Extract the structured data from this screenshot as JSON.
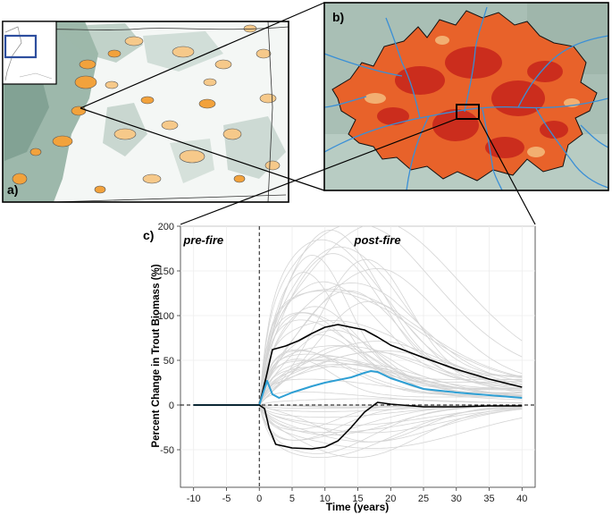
{
  "panels": {
    "a": {
      "label": "a)"
    },
    "b": {
      "label": "b)"
    },
    "c": {
      "label": "c)"
    }
  },
  "colors": {
    "forest": "#8fae9f",
    "fire_orange": "#f2a23c",
    "fire_light": "#f6c98a",
    "burn_red": "#c8281c",
    "burn_orange": "#e8622a",
    "stream_blue": "#3a8fd6",
    "inset_box": "#2d4e9e",
    "median_line": "#2e9fd4",
    "bound_line": "#000000",
    "sim_line": "#d4d4d4"
  },
  "chart_data": {
    "type": "line",
    "xlabel": "Time (years)",
    "ylabel": "Percent Change in Trout Biomass (%)",
    "xlim": [
      -12,
      42
    ],
    "ylim": [
      -92,
      200
    ],
    "xticks": [
      -10,
      -5,
      0,
      5,
      10,
      15,
      20,
      25,
      30,
      35,
      40
    ],
    "yticks": [
      -50,
      0,
      50,
      100,
      150,
      200
    ],
    "grid": true,
    "annotations": [
      {
        "text": "pre-fire",
        "x": -8.5,
        "y": 180
      },
      {
        "text": "post-fire",
        "x": 18,
        "y": 180
      }
    ],
    "reference_lines": {
      "vertical_x": 0,
      "horizontal_y": 0
    },
    "series": [
      {
        "role": "upper_bound",
        "x": [
          -10,
          0,
          1,
          2,
          4,
          6,
          8,
          10,
          12,
          14,
          16,
          18,
          20,
          25,
          30,
          35,
          40
        ],
        "y": [
          0,
          0,
          30,
          62,
          66,
          72,
          80,
          87,
          90,
          87,
          84,
          76,
          67,
          53,
          40,
          29,
          20
        ]
      },
      {
        "role": "median",
        "x": [
          -10,
          0,
          0.6,
          1.2,
          2,
          3,
          5,
          8,
          10,
          12,
          14,
          16,
          17,
          18,
          20,
          25,
          30,
          35,
          40
        ],
        "y": [
          0,
          0,
          14,
          27,
          12,
          8,
          14,
          21,
          25,
          28,
          31,
          36,
          38,
          37,
          30,
          18,
          14,
          11,
          8
        ]
      },
      {
        "role": "lower_bound",
        "x": [
          -10,
          0,
          0.8,
          1.5,
          2.5,
          5,
          8,
          10,
          12,
          14,
          16,
          18,
          20,
          25,
          30,
          35,
          40
        ],
        "y": [
          0,
          0,
          -4,
          -26,
          -44,
          -48,
          -49,
          -47,
          -40,
          -25,
          -8,
          3,
          1,
          -2,
          -2,
          -1,
          -1
        ]
      }
    ]
  }
}
